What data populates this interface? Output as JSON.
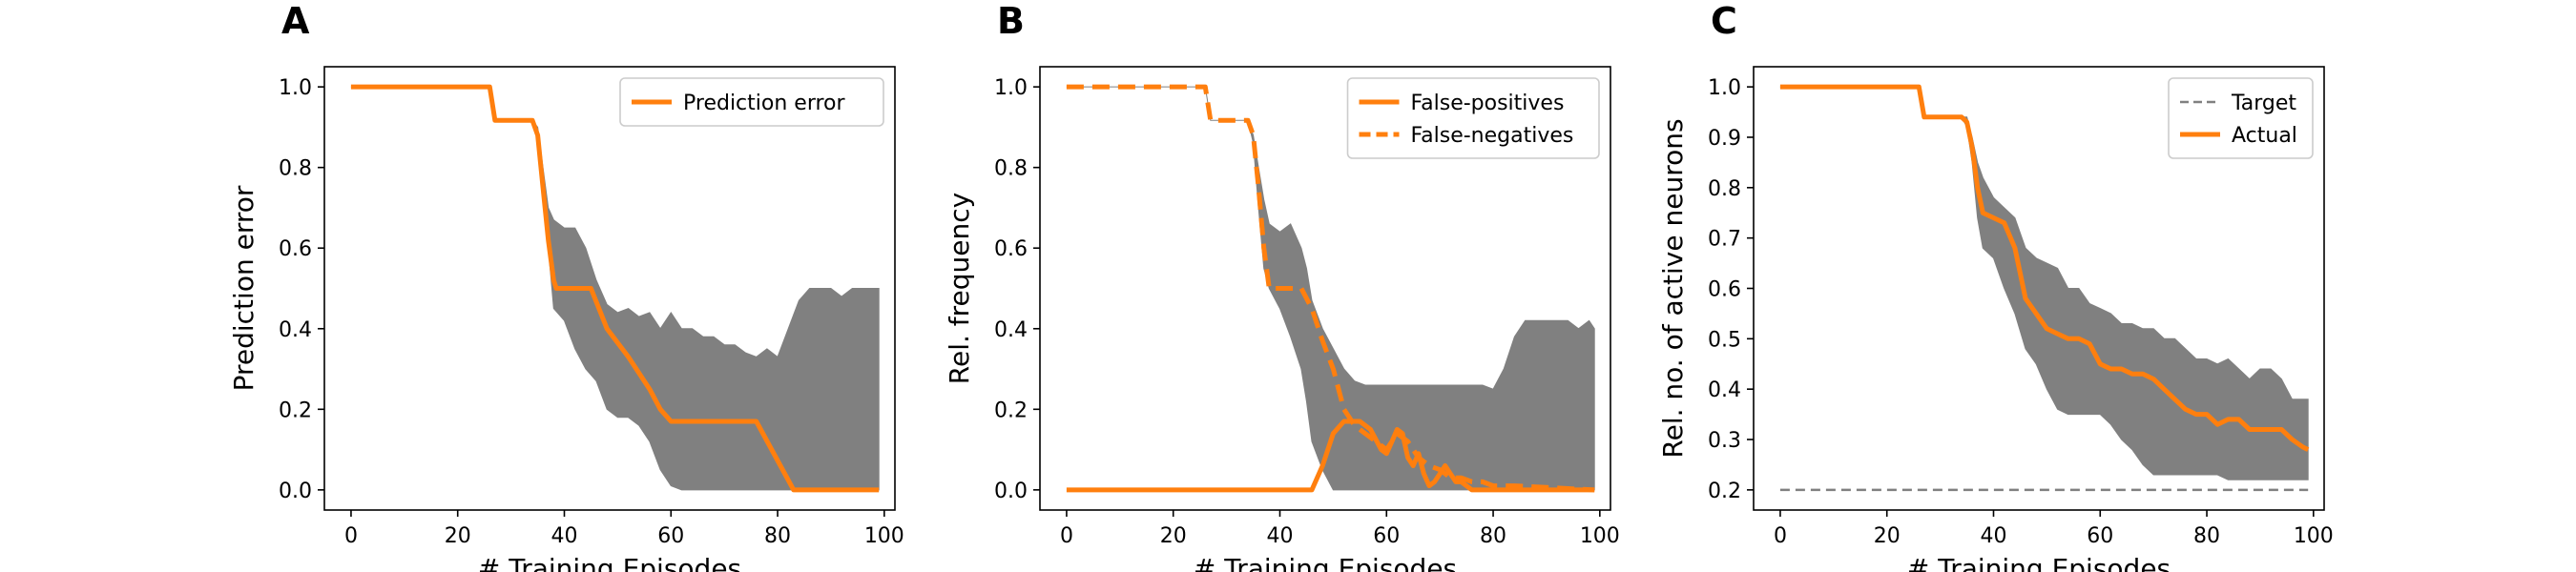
{
  "colors": {
    "orange": "#ff7f0e",
    "band": "#808080",
    "target": "#808080",
    "axis": "#000000"
  },
  "chart_data": [
    {
      "type": "line",
      "panel_label": "A",
      "xlabel": "# Training Episodes",
      "ylabel": "Prediction error",
      "xlim": [
        -5,
        102
      ],
      "ylim": [
        -0.05,
        1.05
      ],
      "xticks": [
        0,
        20,
        40,
        60,
        80,
        100
      ],
      "xtick_labels": [
        "0",
        "20",
        "40",
        "60",
        "80",
        "100"
      ],
      "yticks": [
        0.0,
        0.2,
        0.4,
        0.6,
        0.8,
        1.0
      ],
      "ytick_labels": [
        "0.0",
        "0.2",
        "0.4",
        "0.6",
        "0.8",
        "1.0"
      ],
      "legend_position": "top-right",
      "series": [
        {
          "name": "Prediction error",
          "style": "solid",
          "x": [
            0,
            26,
            27,
            34,
            35,
            36,
            37,
            38,
            38.5,
            45,
            48,
            52,
            56,
            58,
            60,
            63,
            76,
            83,
            99
          ],
          "y": [
            1.0,
            1.0,
            0.917,
            0.917,
            0.88,
            0.75,
            0.62,
            0.52,
            0.5,
            0.5,
            0.4,
            0.33,
            0.25,
            0.2,
            0.17,
            0.17,
            0.17,
            0.0,
            0.0
          ]
        }
      ],
      "band": {
        "x": [
          0,
          26,
          27,
          34,
          35,
          36,
          37,
          38,
          40,
          42,
          44,
          46,
          48,
          50,
          52,
          54,
          56,
          58,
          60,
          62,
          64,
          66,
          68,
          70,
          72,
          74,
          76,
          78,
          80,
          82,
          84,
          86,
          88,
          90,
          92,
          94,
          96,
          98,
          99
        ],
        "upper": [
          1.0,
          1.0,
          0.917,
          0.917,
          0.9,
          0.8,
          0.7,
          0.67,
          0.65,
          0.65,
          0.6,
          0.52,
          0.46,
          0.44,
          0.45,
          0.43,
          0.44,
          0.4,
          0.44,
          0.4,
          0.4,
          0.38,
          0.38,
          0.36,
          0.36,
          0.34,
          0.33,
          0.35,
          0.33,
          0.4,
          0.47,
          0.5,
          0.5,
          0.5,
          0.48,
          0.5,
          0.5,
          0.5,
          0.5
        ],
        "lower": [
          1.0,
          1.0,
          0.917,
          0.917,
          0.88,
          0.72,
          0.6,
          0.45,
          0.42,
          0.35,
          0.3,
          0.27,
          0.2,
          0.18,
          0.18,
          0.16,
          0.12,
          0.05,
          0.01,
          0.0,
          0.0,
          0.0,
          0.0,
          0.0,
          0.0,
          0.0,
          0.0,
          0.0,
          0.0,
          0.0,
          0.0,
          0.0,
          0.0,
          0.0,
          0.0,
          0.0,
          0.0,
          0.0,
          0.0
        ]
      }
    },
    {
      "type": "line",
      "panel_label": "B",
      "xlabel": "# Training Episodes",
      "ylabel": "Rel. frequency",
      "xlim": [
        -5,
        102
      ],
      "ylim": [
        -0.05,
        1.05
      ],
      "xticks": [
        0,
        20,
        40,
        60,
        80,
        100
      ],
      "xtick_labels": [
        "0",
        "20",
        "40",
        "60",
        "80",
        "100"
      ],
      "yticks": [
        0.0,
        0.2,
        0.4,
        0.6,
        0.8,
        1.0
      ],
      "ytick_labels": [
        "0.0",
        "0.2",
        "0.4",
        "0.6",
        "0.8",
        "1.0"
      ],
      "legend_position": "top-right",
      "series": [
        {
          "name": "False-positives",
          "style": "solid",
          "x": [
            0,
            46,
            48,
            50,
            52,
            55,
            57,
            59,
            60,
            61,
            62,
            63,
            64,
            65,
            66,
            67,
            68,
            69,
            70,
            71,
            72,
            73,
            74,
            75,
            76,
            77,
            78,
            99
          ],
          "y": [
            0.0,
            0.0,
            0.06,
            0.14,
            0.17,
            0.17,
            0.15,
            0.1,
            0.09,
            0.12,
            0.15,
            0.14,
            0.08,
            0.06,
            0.09,
            0.04,
            0.01,
            0.02,
            0.04,
            0.06,
            0.04,
            0.02,
            0.02,
            0.01,
            0.0,
            0.0,
            0.0,
            0.0
          ]
        },
        {
          "name": "False-negatives",
          "style": "dashed",
          "x": [
            0,
            26,
            27,
            34,
            35,
            36,
            37,
            38,
            40,
            42,
            44,
            46,
            48,
            50,
            52,
            54,
            56,
            58,
            60,
            62,
            64,
            66,
            68,
            70,
            72,
            74,
            76,
            78,
            80,
            84,
            99
          ],
          "y": [
            1.0,
            1.0,
            0.917,
            0.917,
            0.88,
            0.75,
            0.6,
            0.5,
            0.5,
            0.5,
            0.5,
            0.45,
            0.37,
            0.3,
            0.2,
            0.16,
            0.14,
            0.12,
            0.1,
            0.14,
            0.12,
            0.08,
            0.06,
            0.05,
            0.03,
            0.03,
            0.02,
            0.02,
            0.01,
            0.01,
            0.0
          ]
        }
      ],
      "band": {
        "x": [
          0,
          26,
          27,
          34,
          35,
          36,
          37,
          38,
          40,
          42,
          44,
          45,
          46,
          48,
          50,
          52,
          54,
          56,
          58,
          60,
          62,
          64,
          66,
          68,
          70,
          72,
          74,
          76,
          78,
          80,
          82,
          84,
          86,
          88,
          90,
          92,
          94,
          96,
          98,
          99
        ],
        "upper": [
          1.0,
          1.0,
          0.917,
          0.917,
          0.88,
          0.8,
          0.72,
          0.66,
          0.64,
          0.66,
          0.6,
          0.55,
          0.47,
          0.4,
          0.35,
          0.3,
          0.27,
          0.26,
          0.26,
          0.26,
          0.26,
          0.26,
          0.26,
          0.26,
          0.26,
          0.26,
          0.26,
          0.26,
          0.26,
          0.25,
          0.3,
          0.38,
          0.42,
          0.42,
          0.42,
          0.42,
          0.42,
          0.4,
          0.42,
          0.4
        ],
        "lower": [
          1.0,
          1.0,
          0.917,
          0.917,
          0.86,
          0.7,
          0.55,
          0.5,
          0.45,
          0.38,
          0.3,
          0.22,
          0.12,
          0.05,
          0.0,
          0.0,
          0.0,
          0.0,
          0.0,
          0.0,
          0.0,
          0.0,
          0.0,
          0.0,
          0.0,
          0.0,
          0.0,
          0.0,
          0.0,
          0.0,
          0.0,
          0.0,
          0.0,
          0.0,
          0.0,
          0.0,
          0.0,
          0.0,
          0.0,
          0.0
        ]
      }
    },
    {
      "type": "line",
      "panel_label": "C",
      "xlabel": "# Training Episodes",
      "ylabel": "Rel. no. of active neurons",
      "xlim": [
        -5,
        102
      ],
      "ylim": [
        0.16,
        1.04
      ],
      "xticks": [
        0,
        20,
        40,
        60,
        80,
        100
      ],
      "xtick_labels": [
        "0",
        "20",
        "40",
        "60",
        "80",
        "100"
      ],
      "yticks": [
        0.2,
        0.3,
        0.4,
        0.5,
        0.6,
        0.7,
        0.8,
        0.9,
        1.0
      ],
      "ytick_labels": [
        "0.2",
        "0.3",
        "0.4",
        "0.5",
        "0.6",
        "0.7",
        "0.8",
        "0.9",
        "1.0"
      ],
      "legend_position": "top-right",
      "series": [
        {
          "name": "Target",
          "style": "dashed-thin",
          "x": [
            0,
            99
          ],
          "y": [
            0.2,
            0.2
          ]
        },
        {
          "name": "Actual",
          "style": "solid",
          "x": [
            0,
            26,
            27,
            34,
            35,
            36,
            37,
            38,
            40,
            42,
            44,
            46,
            48,
            50,
            52,
            54,
            56,
            58,
            60,
            62,
            64,
            66,
            68,
            70,
            72,
            74,
            76,
            78,
            80,
            82,
            84,
            86,
            88,
            90,
            92,
            94,
            96,
            98,
            99
          ],
          "y": [
            1.0,
            1.0,
            0.94,
            0.94,
            0.93,
            0.88,
            0.8,
            0.75,
            0.74,
            0.73,
            0.68,
            0.58,
            0.55,
            0.52,
            0.51,
            0.5,
            0.5,
            0.49,
            0.45,
            0.44,
            0.44,
            0.43,
            0.43,
            0.42,
            0.4,
            0.38,
            0.36,
            0.35,
            0.35,
            0.33,
            0.34,
            0.34,
            0.32,
            0.32,
            0.32,
            0.32,
            0.3,
            0.285,
            0.28
          ]
        }
      ],
      "band": {
        "x": [
          0,
          26,
          27,
          34,
          35,
          36,
          37,
          38,
          40,
          42,
          44,
          46,
          48,
          50,
          52,
          54,
          56,
          58,
          60,
          62,
          64,
          66,
          68,
          70,
          72,
          74,
          76,
          78,
          80,
          82,
          84,
          86,
          88,
          90,
          92,
          94,
          96,
          98,
          99
        ],
        "upper": [
          1.0,
          1.0,
          0.94,
          0.94,
          0.94,
          0.9,
          0.85,
          0.82,
          0.78,
          0.76,
          0.74,
          0.68,
          0.66,
          0.65,
          0.64,
          0.6,
          0.6,
          0.57,
          0.56,
          0.55,
          0.53,
          0.53,
          0.52,
          0.52,
          0.5,
          0.5,
          0.48,
          0.46,
          0.46,
          0.45,
          0.46,
          0.44,
          0.42,
          0.44,
          0.44,
          0.42,
          0.38,
          0.38,
          0.38
        ],
        "lower": [
          1.0,
          1.0,
          0.94,
          0.94,
          0.92,
          0.85,
          0.74,
          0.68,
          0.66,
          0.6,
          0.55,
          0.48,
          0.45,
          0.4,
          0.36,
          0.35,
          0.35,
          0.35,
          0.35,
          0.33,
          0.3,
          0.28,
          0.25,
          0.23,
          0.23,
          0.23,
          0.23,
          0.23,
          0.23,
          0.23,
          0.22,
          0.22,
          0.22,
          0.22,
          0.22,
          0.22,
          0.22,
          0.22,
          0.22
        ]
      }
    }
  ]
}
